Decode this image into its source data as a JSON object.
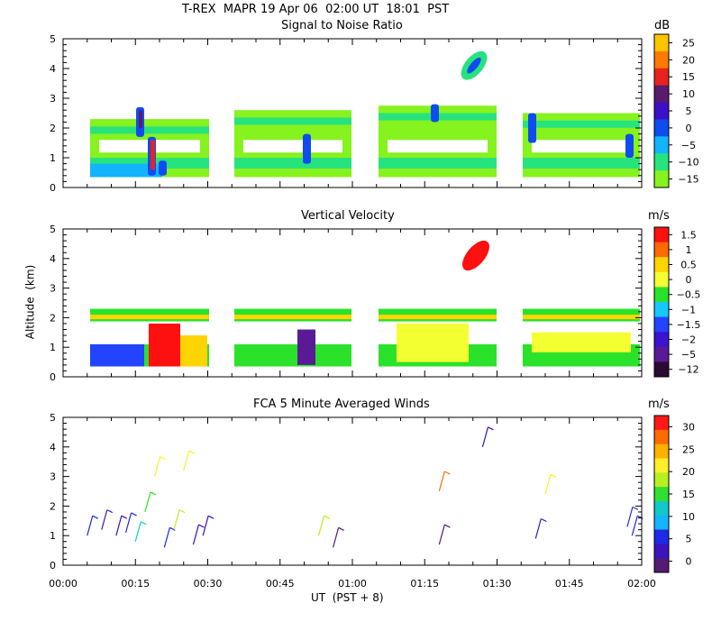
{
  "header": {
    "title": "T-REX  MAPR 19 Apr 06  02:00 UT  18:01  PST"
  },
  "chart_data": [
    {
      "type": "heatmap",
      "title": "Signal to Noise Ratio",
      "ylabel": "",
      "ylim": [
        0,
        5
      ],
      "yticks": [
        "0",
        "1",
        "2",
        "3",
        "4",
        "5"
      ],
      "units": "dB",
      "colorbar_labels": [
        "25",
        "20",
        "15",
        "10",
        "5",
        "0",
        "−5",
        "−10",
        "−15"
      ],
      "colors": [
        "#ffc400",
        "#ff7a00",
        "#e8221e",
        "#5a1a6e",
        "#3c10c8",
        "#0e4cf0",
        "#12b4ff",
        "#27e37e",
        "#86f21e"
      ]
    },
    {
      "type": "heatmap",
      "title": "Vertical Velocity",
      "ylabel": "Altitude  (km)",
      "ylim": [
        0,
        5
      ],
      "yticks": [
        "0",
        "1",
        "2",
        "3",
        "4",
        "5"
      ],
      "units": "m/s",
      "colorbar_labels": [
        "1.5",
        "1",
        "0.5",
        "0",
        "−0.5",
        "−1",
        "−1.5",
        "−2",
        "−5",
        "−12"
      ],
      "colors": [
        "#ff1010",
        "#ff6a00",
        "#ffd400",
        "#f4ff32",
        "#2ae22a",
        "#14c8ff",
        "#2244ff",
        "#3a14ce",
        "#5a1a96",
        "#2a0a32"
      ]
    },
    {
      "type": "scatter",
      "title": "FCA 5 Minute Averaged Winds",
      "xlabel": "UT  (PST + 8)",
      "ylim": [
        0,
        5
      ],
      "yticks": [
        "0",
        "1",
        "2",
        "3",
        "4",
        "5"
      ],
      "xticks": [
        "00:00",
        "00:15",
        "00:30",
        "00:45",
        "01:00",
        "01:15",
        "01:30",
        "01:45",
        "02:00"
      ],
      "units": "m/s",
      "colorbar_labels": [
        "30",
        "25",
        "20",
        "15",
        "10",
        "5",
        "0"
      ],
      "colors": [
        "#ff1818",
        "#ff6a00",
        "#ffb000",
        "#ffee28",
        "#b6f020",
        "#30e030",
        "#12c8c8",
        "#14b4ff",
        "#1e2ae6",
        "#3a14be",
        "#551a75"
      ]
    }
  ]
}
